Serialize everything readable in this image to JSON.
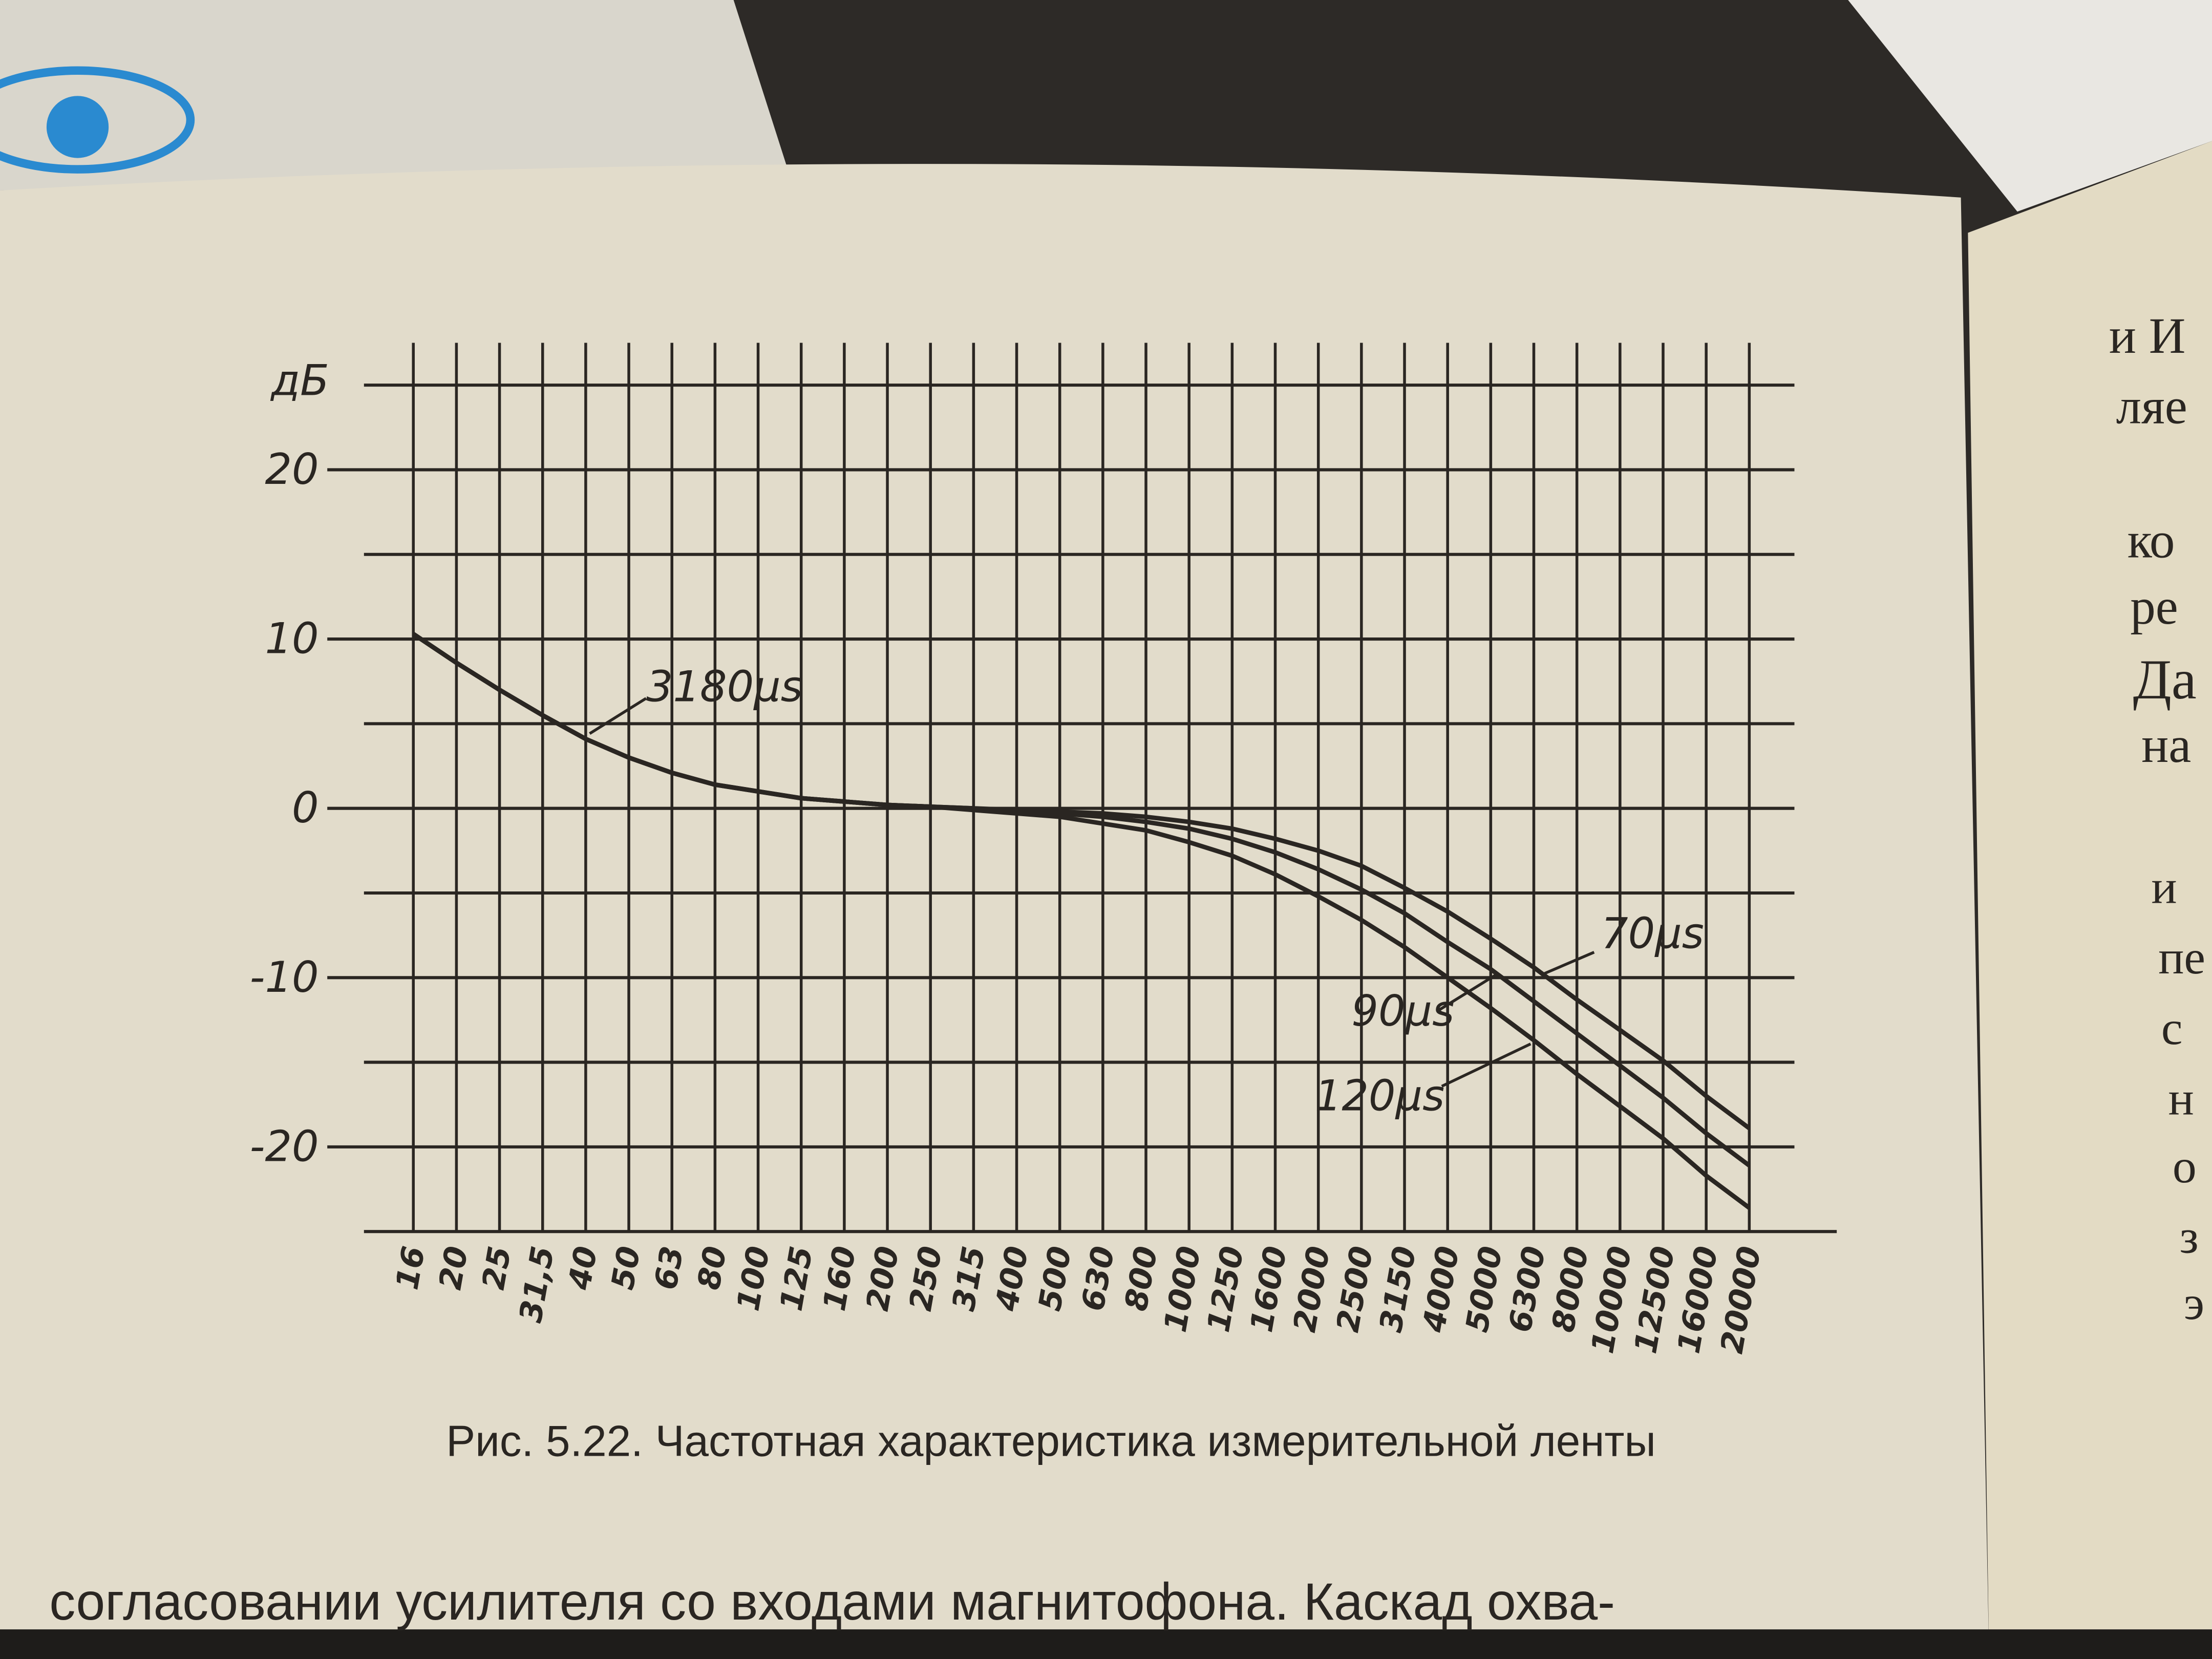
{
  "chart_data": {
    "type": "line",
    "y_label": "дБ",
    "categories": [
      "16",
      "20",
      "25",
      "31,5",
      "40",
      "50",
      "63",
      "80",
      "100",
      "125",
      "160",
      "200",
      "250",
      "315",
      "400",
      "500",
      "630",
      "800",
      "1000",
      "1250",
      "1600",
      "2000",
      "2500",
      "3150",
      "4000",
      "5000",
      "6300",
      "8000",
      "10000",
      "12500",
      "16000",
      "20000"
    ],
    "series": [
      {
        "name": "70μs",
        "color": "#2a2622",
        "values": [
          10.3,
          8.6,
          7.0,
          5.5,
          4.1,
          3.0,
          2.1,
          1.4,
          1.0,
          0.6,
          0.4,
          0.2,
          0.1,
          0.0,
          -0.1,
          -0.2,
          -0.3,
          -0.5,
          -0.8,
          -1.2,
          -1.8,
          -2.5,
          -3.4,
          -4.7,
          -6.1,
          -7.7,
          -9.4,
          -11.3,
          -13.1,
          -14.9,
          -17.0,
          -18.9
        ]
      },
      {
        "name": "90μs",
        "color": "#2a2622",
        "values": [
          10.3,
          8.6,
          7.0,
          5.5,
          4.1,
          3.0,
          2.1,
          1.4,
          1.0,
          0.6,
          0.4,
          0.2,
          0.1,
          0.0,
          -0.2,
          -0.3,
          -0.5,
          -0.8,
          -1.2,
          -1.8,
          -2.6,
          -3.6,
          -4.8,
          -6.2,
          -7.9,
          -9.5,
          -11.4,
          -13.3,
          -15.2,
          -17.1,
          -19.2,
          -21.1
        ]
      },
      {
        "name": "120μs",
        "color": "#2a2622",
        "values": [
          10.3,
          8.6,
          7.0,
          5.5,
          4.1,
          3.0,
          2.1,
          1.4,
          1.0,
          0.6,
          0.4,
          0.2,
          0.1,
          -0.1,
          -0.3,
          -0.5,
          -0.9,
          -1.3,
          -2.0,
          -2.8,
          -3.9,
          -5.2,
          -6.6,
          -8.2,
          -10.0,
          -11.8,
          -13.7,
          -15.7,
          -17.6,
          -19.5,
          -21.7,
          -23.6
        ]
      }
    ],
    "annotations": [
      "3180μs"
    ],
    "ylim": [
      -25,
      25
    ],
    "yticks": [
      20,
      10,
      0,
      -10,
      -20
    ],
    "yminorticks": [
      25,
      15,
      5,
      -5,
      -15,
      -25
    ],
    "grid": true,
    "caption": "Рис. 5.22. Частотная характеристика измерительной ленты"
  },
  "page_text": {
    "body_line": "согласовании усилителя со входами магнитофона. Каскад охва-",
    "right_page": [
      "и И",
      "ляе",
      "ко",
      "ре",
      "Да",
      "на",
      "и",
      "пе",
      "с",
      "н",
      "о",
      "з",
      "э"
    ]
  }
}
